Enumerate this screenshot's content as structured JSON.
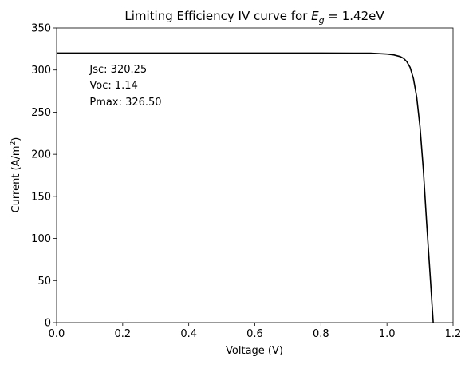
{
  "chart_data": {
    "type": "line",
    "title": {
      "prefix": "Limiting Efficiency IV curve for ",
      "symbol": "E",
      "subscript": "g",
      "suffix": " = 1.42eV"
    },
    "xlabel": "Voltage (V)",
    "ylabel": {
      "text": "Current (A/m",
      "superscript": "2",
      "close": ")"
    },
    "xlim": [
      0,
      1.2
    ],
    "ylim": [
      0,
      350
    ],
    "xticks": [
      0,
      0.2,
      0.4,
      0.6,
      0.8,
      1.0,
      1.2
    ],
    "xtick_labels": [
      "0.0",
      "0.2",
      "0.4",
      "0.6",
      "0.8",
      "1.0",
      "1.2"
    ],
    "yticks": [
      0,
      50,
      100,
      150,
      200,
      250,
      300,
      350
    ],
    "ytick_labels": [
      "0",
      "50",
      "100",
      "150",
      "200",
      "250",
      "300",
      "350"
    ],
    "grid": false,
    "annotations": [
      {
        "text": "Jsc: 320.25",
        "x": 0.1,
        "y": 297
      },
      {
        "text": "Voc: 1.14",
        "x": 0.1,
        "y": 278
      },
      {
        "text": "Pmax: 326.50",
        "x": 0.1,
        "y": 258
      }
    ],
    "series": [
      {
        "color": "#000000",
        "points": [
          [
            0.0,
            320.25
          ],
          [
            0.2,
            320.25
          ],
          [
            0.4,
            320.25
          ],
          [
            0.6,
            320.25
          ],
          [
            0.8,
            320.2
          ],
          [
            0.9,
            320.1
          ],
          [
            0.95,
            320.0
          ],
          [
            1.0,
            319.0
          ],
          [
            1.02,
            318.0
          ],
          [
            1.04,
            316.0
          ],
          [
            1.05,
            314.0
          ],
          [
            1.06,
            310.0
          ],
          [
            1.07,
            303.0
          ],
          [
            1.08,
            290.0
          ],
          [
            1.09,
            268.0
          ],
          [
            1.1,
            232.0
          ],
          [
            1.11,
            182.0
          ],
          [
            1.12,
            118.0
          ],
          [
            1.13,
            60.0
          ],
          [
            1.14,
            0.0
          ]
        ]
      }
    ]
  }
}
